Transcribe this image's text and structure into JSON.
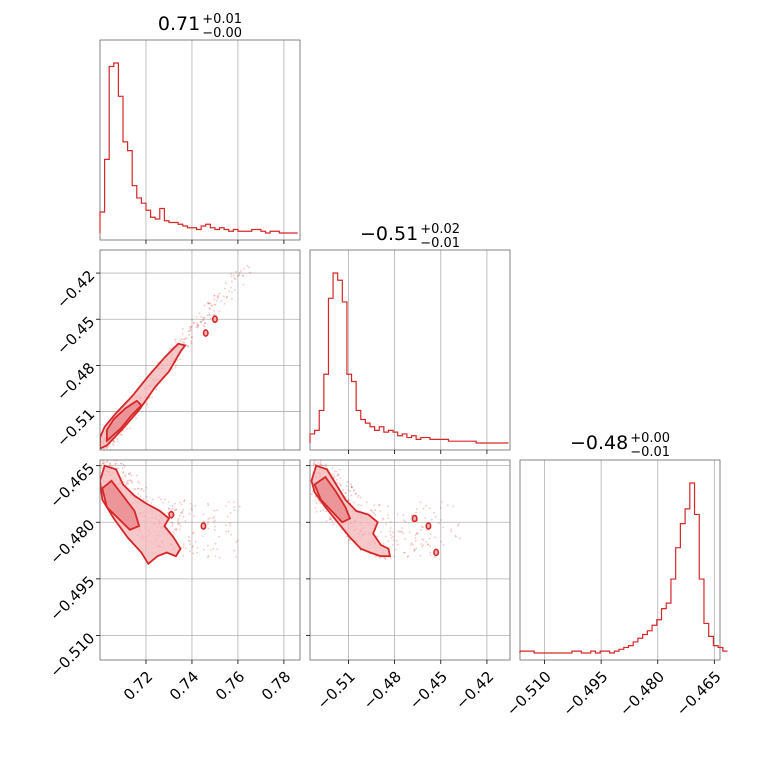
{
  "chart_data": {
    "type": "corner",
    "color": "#d62728",
    "fill_color": "#f4b6b8",
    "grid": true,
    "params": [
      {
        "median": "0.71",
        "plus": "+0.01",
        "minus": "−0.00",
        "range": [
          0.7,
          0.787
        ],
        "ticks": [
          0.72,
          0.74,
          0.76,
          0.78
        ],
        "tick_labels": [
          "0.72",
          "0.74",
          "0.76",
          "0.78"
        ]
      },
      {
        "median": "−0.51",
        "plus": "+0.02",
        "minus": "−0.01",
        "range": [
          -0.535,
          -0.405
        ],
        "ticks": [
          -0.51,
          -0.48,
          -0.45,
          -0.42
        ],
        "tick_labels": [
          "−0.51",
          "−0.48",
          "−0.45",
          "−0.42"
        ]
      },
      {
        "median": "−0.48",
        "plus": "+0.00",
        "minus": "−0.01",
        "range": [
          -0.5165,
          -0.4635
        ],
        "ticks": [
          -0.465,
          -0.48,
          -0.495,
          -0.51
        ],
        "tick_labels": [
          "−0.465",
          "−0.480",
          "−0.495",
          "−0.510"
        ],
        "bottom_tick_labels": [
          "−0.510",
          "−0.495",
          "−0.480",
          "−0.465"
        ]
      }
    ],
    "histograms": [
      {
        "param": 0,
        "bin_edges_start": 0.7,
        "bin_width": 0.002,
        "counts": [
          0.12,
          0.42,
          0.95,
          0.97,
          0.78,
          0.52,
          0.47,
          0.27,
          0.2,
          0.17,
          0.13,
          0.09,
          0.08,
          0.14,
          0.07,
          0.06,
          0.06,
          0.05,
          0.04,
          0.03,
          0.03,
          0.02,
          0.04,
          0.05,
          0.03,
          0.02,
          0.03,
          0.02,
          0.01,
          0.02,
          0.01,
          0.01,
          0.01,
          0.02,
          0.02,
          0.01,
          0.0,
          0.01,
          0.01,
          0.0,
          0.0,
          0.0,
          0.0
        ]
      },
      {
        "param": 1,
        "bin_edges_start": -0.535,
        "bin_width": 0.003,
        "counts": [
          0.05,
          0.07,
          0.18,
          0.38,
          0.8,
          0.94,
          0.9,
          0.78,
          0.38,
          0.34,
          0.18,
          0.13,
          0.11,
          0.09,
          0.07,
          0.09,
          0.06,
          0.07,
          0.06,
          0.04,
          0.05,
          0.03,
          0.04,
          0.02,
          0.03,
          0.03,
          0.02,
          0.02,
          0.02,
          0.02,
          0.01,
          0.01,
          0.01,
          0.01,
          0.01,
          0.01,
          0.0,
          0.0,
          0.0,
          0.0,
          0.0,
          0.0,
          0.0
        ]
      },
      {
        "param": 2,
        "bin_edges_start": -0.5165,
        "bin_width": 0.00125,
        "counts": [
          0.01,
          0.01,
          0.01,
          0.0,
          0.0,
          0.0,
          0.0,
          0.0,
          0.0,
          0.0,
          0.0,
          0.01,
          0.01,
          0.0,
          0.0,
          0.01,
          0.0,
          0.01,
          0.01,
          0.0,
          0.01,
          0.02,
          0.03,
          0.04,
          0.06,
          0.08,
          0.1,
          0.12,
          0.15,
          0.18,
          0.24,
          0.27,
          0.4,
          0.57,
          0.7,
          0.78,
          0.92,
          0.75,
          0.4,
          0.16,
          0.09,
          0.04,
          0.03,
          0.01
        ]
      }
    ],
    "panels_2d": [
      {
        "x_param": 0,
        "y_param": 1,
        "trend": [
          [
            0.7,
            -0.533
          ],
          [
            0.71,
            -0.518
          ],
          [
            0.72,
            -0.497
          ],
          [
            0.73,
            -0.478
          ],
          [
            0.74,
            -0.458
          ],
          [
            0.75,
            -0.44
          ],
          [
            0.765,
            -0.416
          ]
        ],
        "outer_contour": [
          [
            0.7,
            -0.534
          ],
          [
            0.703,
            -0.532
          ],
          [
            0.71,
            -0.521
          ],
          [
            0.717,
            -0.509
          ],
          [
            0.724,
            -0.494
          ],
          [
            0.73,
            -0.484
          ],
          [
            0.735,
            -0.471
          ],
          [
            0.737,
            -0.467
          ],
          [
            0.734,
            -0.466
          ],
          [
            0.728,
            -0.475
          ],
          [
            0.721,
            -0.487
          ],
          [
            0.714,
            -0.5
          ],
          [
            0.707,
            -0.511
          ],
          [
            0.702,
            -0.52
          ],
          [
            0.7,
            -0.527
          ]
        ],
        "inner_contour": [
          [
            0.703,
            -0.529
          ],
          [
            0.709,
            -0.521
          ],
          [
            0.714,
            -0.512
          ],
          [
            0.718,
            -0.506
          ],
          [
            0.716,
            -0.503
          ],
          [
            0.711,
            -0.508
          ],
          [
            0.706,
            -0.515
          ],
          [
            0.703,
            -0.522
          ]
        ],
        "islands": [
          [
            0.746,
            -0.459
          ],
          [
            0.75,
            -0.45
          ]
        ]
      },
      {
        "x_param": 0,
        "y_param": 2,
        "trend": [
          [
            0.702,
            -0.468
          ],
          [
            0.71,
            -0.472
          ],
          [
            0.72,
            -0.478
          ],
          [
            0.73,
            -0.481
          ],
          [
            0.74,
            -0.482
          ],
          [
            0.76,
            -0.482
          ]
        ],
        "outer_contour": [
          [
            0.7,
            -0.469
          ],
          [
            0.702,
            -0.465
          ],
          [
            0.707,
            -0.466
          ],
          [
            0.71,
            -0.47
          ],
          [
            0.715,
            -0.473
          ],
          [
            0.72,
            -0.475
          ],
          [
            0.726,
            -0.477
          ],
          [
            0.73,
            -0.479
          ],
          [
            0.728,
            -0.481
          ],
          [
            0.732,
            -0.484
          ],
          [
            0.735,
            -0.487
          ],
          [
            0.733,
            -0.489
          ],
          [
            0.729,
            -0.488
          ],
          [
            0.725,
            -0.489
          ],
          [
            0.721,
            -0.491
          ],
          [
            0.718,
            -0.488
          ],
          [
            0.712,
            -0.484
          ],
          [
            0.706,
            -0.479
          ],
          [
            0.701,
            -0.474
          ]
        ],
        "inner_contour": [
          [
            0.701,
            -0.471
          ],
          [
            0.705,
            -0.469
          ],
          [
            0.71,
            -0.473
          ],
          [
            0.715,
            -0.477
          ],
          [
            0.717,
            -0.481
          ],
          [
            0.713,
            -0.482
          ],
          [
            0.708,
            -0.479
          ],
          [
            0.703,
            -0.476
          ]
        ],
        "islands": [
          [
            0.745,
            -0.481
          ],
          [
            0.731,
            -0.478
          ]
        ]
      },
      {
        "x_param": 1,
        "y_param": 2,
        "trend": [
          [
            -0.532,
            -0.468
          ],
          [
            -0.52,
            -0.473
          ],
          [
            -0.505,
            -0.479
          ],
          [
            -0.49,
            -0.483
          ],
          [
            -0.47,
            -0.482
          ],
          [
            -0.44,
            -0.482
          ]
        ],
        "outer_contour": [
          [
            -0.534,
            -0.469
          ],
          [
            -0.531,
            -0.465
          ],
          [
            -0.524,
            -0.466
          ],
          [
            -0.518,
            -0.47
          ],
          [
            -0.512,
            -0.474
          ],
          [
            -0.505,
            -0.477
          ],
          [
            -0.497,
            -0.478
          ],
          [
            -0.491,
            -0.48
          ],
          [
            -0.494,
            -0.483
          ],
          [
            -0.489,
            -0.486
          ],
          [
            -0.484,
            -0.487
          ],
          [
            -0.483,
            -0.489
          ],
          [
            -0.489,
            -0.489
          ],
          [
            -0.496,
            -0.488
          ],
          [
            -0.502,
            -0.487
          ],
          [
            -0.509,
            -0.484
          ],
          [
            -0.517,
            -0.48
          ],
          [
            -0.525,
            -0.476
          ],
          [
            -0.532,
            -0.472
          ]
        ],
        "inner_contour": [
          [
            -0.532,
            -0.47
          ],
          [
            -0.525,
            -0.468
          ],
          [
            -0.518,
            -0.472
          ],
          [
            -0.512,
            -0.476
          ],
          [
            -0.509,
            -0.479
          ],
          [
            -0.514,
            -0.48
          ],
          [
            -0.521,
            -0.477
          ],
          [
            -0.528,
            -0.474
          ]
        ],
        "islands": [
          [
            -0.467,
            -0.479
          ],
          [
            -0.458,
            -0.481
          ],
          [
            -0.453,
            -0.488
          ]
        ]
      }
    ]
  }
}
